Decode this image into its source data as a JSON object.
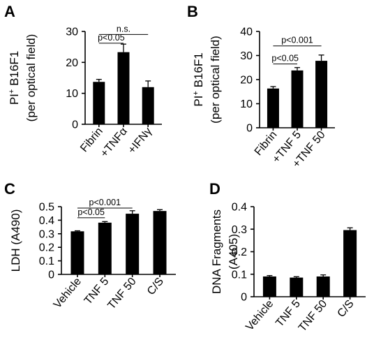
{
  "chart_data": [
    {
      "type": "bar",
      "panel": "A",
      "ylabel": [
        "PI⁺ B16F1",
        "(per optical field)"
      ],
      "ylim": [
        0,
        30
      ],
      "yticks": [
        0,
        10,
        20,
        30
      ],
      "categories": [
        "Fibrin",
        "+TNFα",
        "+IFNγ"
      ],
      "values": [
        13.7,
        23.3,
        12.0
      ],
      "errors": [
        0.8,
        2.6,
        2.0
      ],
      "annotations": [
        {
          "from": 0,
          "to": 1,
          "label": "p<0.05",
          "y": 26.2
        },
        {
          "from": 0,
          "to": 2,
          "label": "n.s.",
          "y": 29.0
        }
      ]
    },
    {
      "type": "bar",
      "panel": "B",
      "ylabel": [
        "PI⁺ B16F1",
        "(per optical field)"
      ],
      "ylim": [
        0,
        40
      ],
      "yticks": [
        0,
        10,
        20,
        30,
        40
      ],
      "categories": [
        "Fibrin",
        "+TNF 5",
        "+TNF 50"
      ],
      "values": [
        16.3,
        23.8,
        27.8
      ],
      "errors": [
        0.8,
        1.2,
        2.4
      ],
      "annotations": [
        {
          "from": 0,
          "to": 1,
          "label": "p<0.05",
          "y": 26.5
        },
        {
          "from": 0,
          "to": 2,
          "label": "p<0.001",
          "y": 34.0
        }
      ]
    },
    {
      "type": "bar",
      "panel": "C",
      "ylabel": [
        "LDH (A490)"
      ],
      "ylim": [
        0,
        0.5
      ],
      "yticks": [
        0,
        0.1,
        0.2,
        0.3,
        0.4,
        0.5
      ],
      "categories": [
        "Vehicle",
        "TNF 5",
        "TNF 50",
        "C/S"
      ],
      "values": [
        0.318,
        0.382,
        0.448,
        0.468
      ],
      "errors": [
        0.004,
        0.008,
        0.022,
        0.01
      ],
      "annotations": [
        {
          "from": 0,
          "to": 1,
          "label": "p<0.05",
          "y": 0.418
        },
        {
          "from": 0,
          "to": 2,
          "label": "p<0.001",
          "y": 0.49
        }
      ]
    },
    {
      "type": "bar",
      "panel": "D",
      "ylabel": [
        "DNA Fragments",
        "(A405)"
      ],
      "ylim": [
        0,
        0.4
      ],
      "yticks": [
        0,
        0.1,
        0.2,
        0.3,
        0.4
      ],
      "categories": [
        "Vehicle",
        "TNF 5",
        "TNF 50",
        "C/S"
      ],
      "values": [
        0.09,
        0.085,
        0.09,
        0.296
      ],
      "errors": [
        0.004,
        0.004,
        0.007,
        0.01
      ],
      "annotations": []
    }
  ]
}
